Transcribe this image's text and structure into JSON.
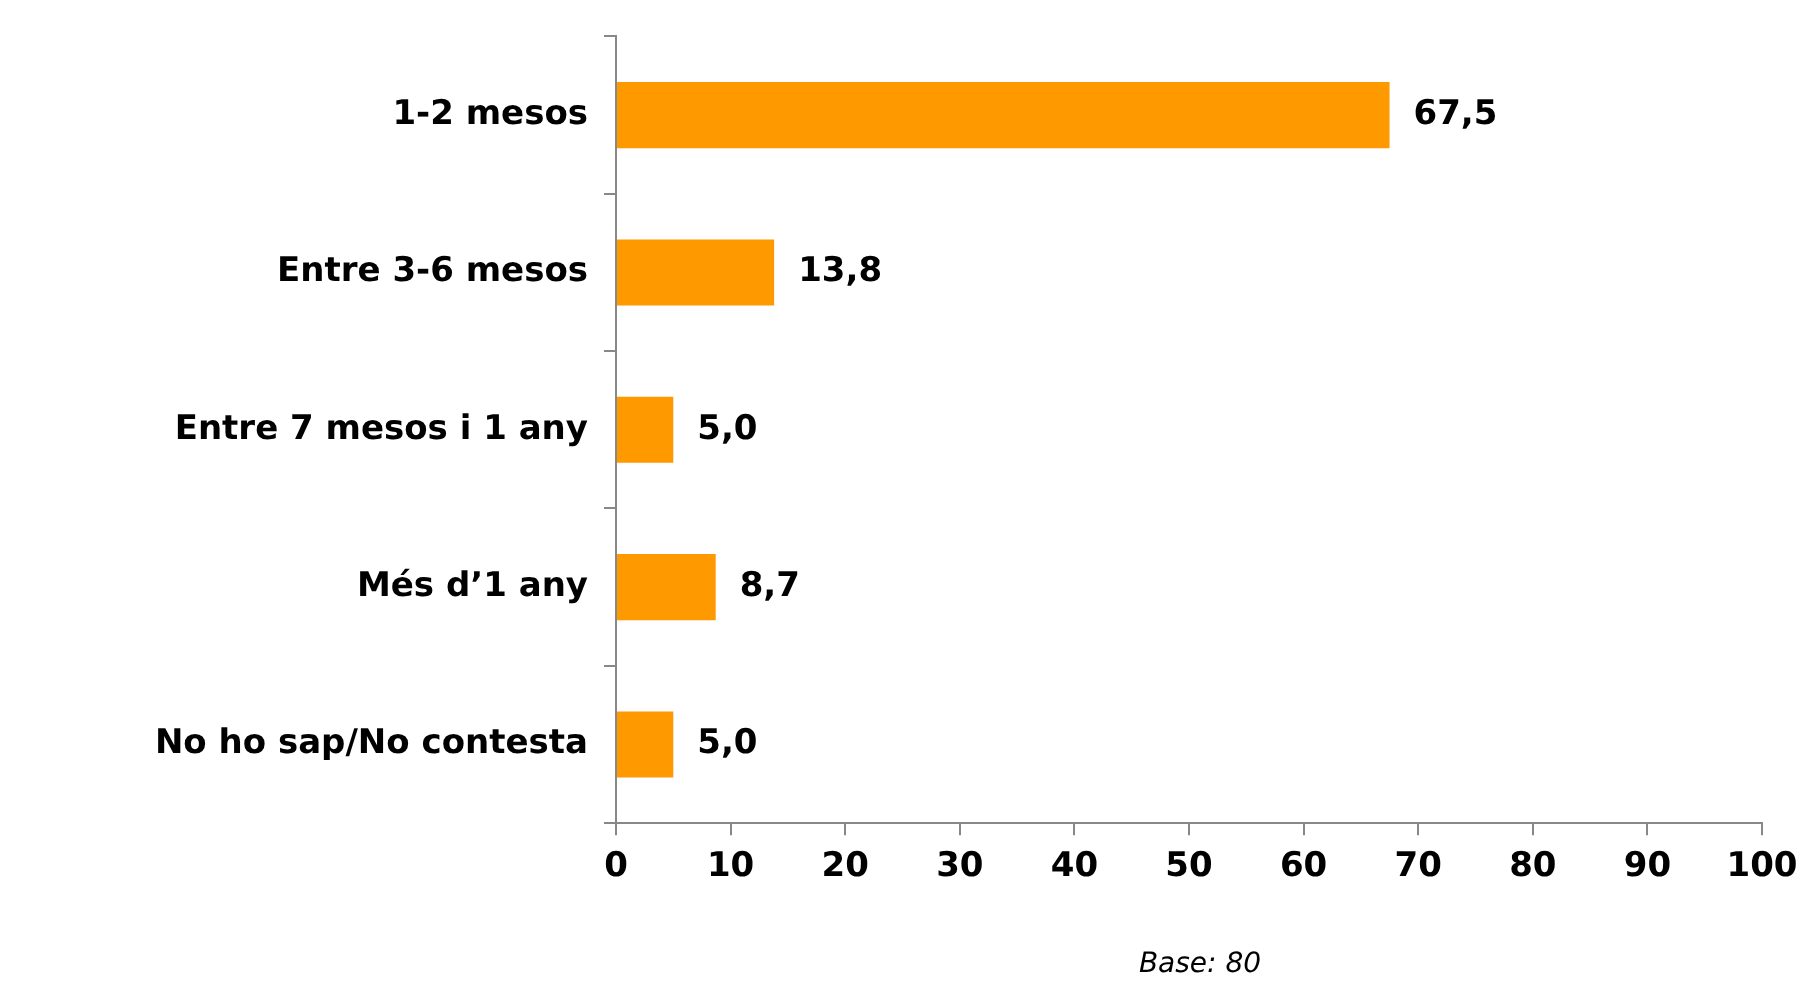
{
  "chart_data": {
    "type": "bar",
    "orientation": "horizontal",
    "categories": [
      "1-2 mesos",
      "Entre 3-6 mesos",
      "Entre 7 mesos i 1 any",
      "Més d’1 any",
      "No ho sap/No contesta"
    ],
    "values": [
      67.5,
      13.8,
      5.0,
      8.7,
      5.0
    ],
    "value_labels": [
      "67,5",
      "13,8",
      "5,0",
      "8,7",
      "5,0"
    ],
    "color": "#ff9900",
    "xlim": [
      0,
      100
    ],
    "xticks": [
      0,
      10,
      20,
      30,
      40,
      50,
      60,
      70,
      80,
      90,
      100
    ],
    "grid": false,
    "legend": false,
    "annotations": [
      "Base: 80"
    ]
  }
}
